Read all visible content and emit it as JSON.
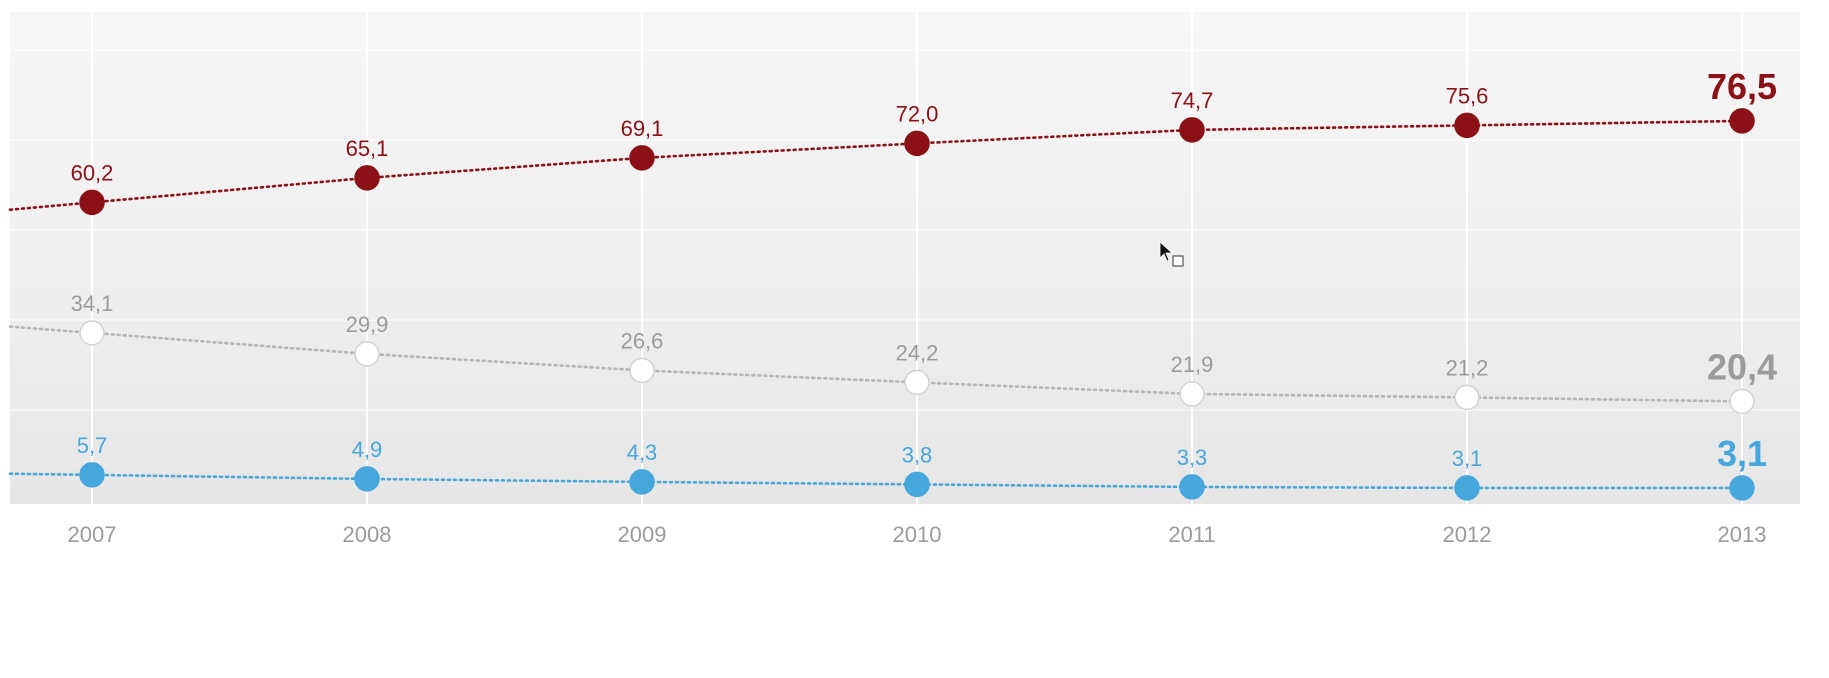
{
  "colors": {
    "series_red": "#8b1116",
    "series_gray": "#9b9b9b",
    "series_blue": "#46a7dc",
    "gray_point_fill": "#ffffff",
    "gray_point_stroke": "#d2d2d2",
    "tick_label": "#9b9b9b",
    "gridline": "#ffffff"
  },
  "chart_data": {
    "type": "line",
    "x": [
      "2007",
      "2008",
      "2009",
      "2010",
      "2011",
      "2012",
      "2013"
    ],
    "ylim": [
      0,
      85
    ],
    "grid": true,
    "legend": "none",
    "series": [
      {
        "key": "red",
        "values": [
          60.2,
          65.1,
          69.1,
          72.0,
          74.7,
          75.6,
          76.5
        ],
        "labels": [
          "60,2",
          "65,1",
          "69,1",
          "72,0",
          "74,7",
          "75,6",
          "76,5"
        ]
      },
      {
        "key": "gray",
        "values": [
          34.1,
          29.9,
          26.6,
          24.2,
          21.9,
          21.2,
          20.4
        ],
        "labels": [
          "34,1",
          "29,9",
          "26,6",
          "24,2",
          "21,9",
          "21,2",
          "20,4"
        ]
      },
      {
        "key": "blue",
        "values": [
          5.7,
          4.9,
          4.3,
          3.8,
          3.3,
          3.1,
          3.1
        ],
        "labels": [
          "5,7",
          "4,9",
          "4,3",
          "3,8",
          "3,3",
          "3,1",
          "3,1"
        ]
      }
    ]
  }
}
